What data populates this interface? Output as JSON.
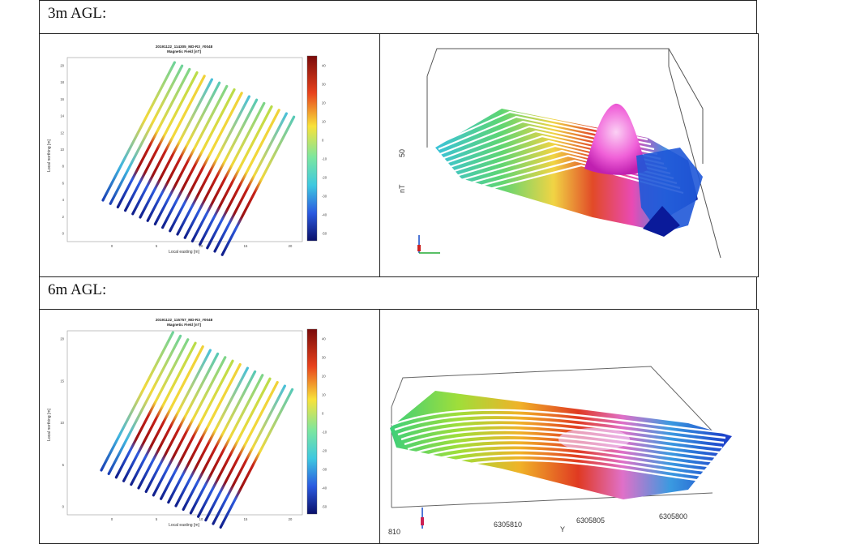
{
  "rows": [
    {
      "label": "3m AGL:",
      "plot": {
        "title": "20191122_114305_MD-R3_#0048",
        "subtitle": "Magnetic Field [nT]",
        "xlabel": "Local easting [m]",
        "ylabel": "Local northing [m]",
        "xticks": [
          "0",
          "5",
          "10",
          "15",
          "20"
        ],
        "yticks": [
          "0",
          "2",
          "4",
          "6",
          "8",
          "10",
          "12",
          "14",
          "16",
          "18",
          "20"
        ],
        "colorbar_ticks": [
          "40",
          "30",
          "20",
          "10",
          "0",
          "-10",
          "-20",
          "-30",
          "-40",
          "-50"
        ]
      }
    },
    {
      "label": "6m AGL:",
      "plot": {
        "title": "20191122_115757_MD-R3_#0048",
        "subtitle": "Magnetic Field [nT]",
        "xlabel": "Local easting [m]",
        "ylabel": "Local northing [m]",
        "xticks": [
          "0",
          "5",
          "10",
          "15",
          "20"
        ],
        "yticks": [
          "0",
          "5",
          "10",
          "15",
          "20"
        ],
        "colorbar_ticks": [
          "40",
          "30",
          "20",
          "10",
          "0",
          "-10",
          "-20",
          "-30",
          "-40",
          "-50"
        ]
      },
      "view3d": {
        "yticks": [
          "6305810",
          "6305805",
          "6305800"
        ],
        "yaxis_label": "Y",
        "corner_label": "810"
      }
    }
  ],
  "colors": {
    "high": "#9b1111",
    "mid_high": "#f3e13a",
    "mid": "#52d3c8",
    "low": "#162a96",
    "peak": "#f060d8"
  }
}
